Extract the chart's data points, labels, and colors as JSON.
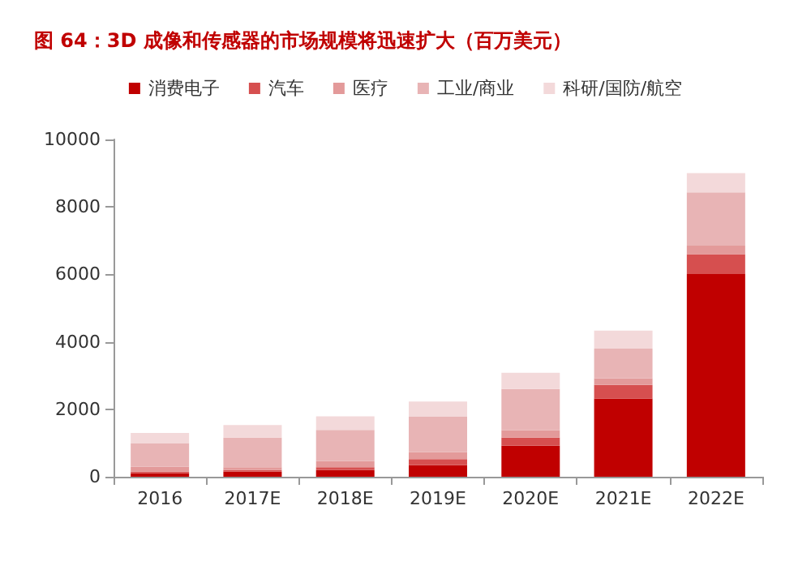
{
  "chart_data": {
    "type": "bar",
    "title": "图 64：3D 成像和传感器的市场规模将迅速扩大（百万美元）",
    "stacked": true,
    "legend": "top",
    "grid": false,
    "categories": [
      "2016",
      "2017E",
      "2018E",
      "2019E",
      "2020E",
      "2021E",
      "2022E"
    ],
    "ylim": [
      0,
      10000
    ],
    "yticks": [
      0,
      2000,
      4000,
      6000,
      8000,
      10000
    ],
    "series": [
      {
        "name": "消费电子",
        "color": "#c00000",
        "values": [
          100,
          150,
          200,
          340,
          920,
          2320,
          6010
        ]
      },
      {
        "name": "汽车",
        "color": "#d64f4f",
        "values": [
          50,
          50,
          80,
          180,
          240,
          400,
          590
        ]
      },
      {
        "name": "医疗",
        "color": "#e39a9a",
        "values": [
          150,
          80,
          180,
          210,
          220,
          200,
          250
        ]
      },
      {
        "name": "工业/商业",
        "color": "#e8b4b5",
        "values": [
          700,
          880,
          930,
          1060,
          1220,
          880,
          1580
        ]
      },
      {
        "name": "科研/国防/航空",
        "color": "#f3d9da",
        "values": [
          300,
          370,
          400,
          440,
          480,
          530,
          570
        ]
      }
    ]
  }
}
